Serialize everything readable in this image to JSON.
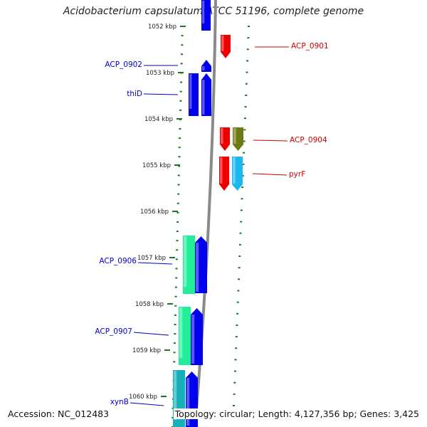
{
  "title": "Acidobacterium capsulatum ATCC 51196, complete genome",
  "footer": {
    "accession": "Accession: NC_012483",
    "summary": "Topology: circular; Length: 4,127,356 bp; Genes: 3,425"
  },
  "colors": {
    "backbone": "#8a8a8a",
    "ticks": "#1a7a1a",
    "tick_text": "#222222",
    "label_left": "#0000cc",
    "label_right": "#cc0000",
    "gene_blue": "#0000ee",
    "gene_red": "#ee0000",
    "gene_olive": "#6b7a12",
    "gene_sky": "#1ab8ee",
    "gene_mint": "#22ee99",
    "gene_teal": "#16b0b8"
  },
  "ruler": {
    "unit": "kbp",
    "ticks": [
      "1052 kbp",
      "1053 kbp",
      "1054 kbp",
      "1055 kbp",
      "1056 kbp",
      "1057 kbp",
      "1058 kbp",
      "1059 kbp",
      "1060 kbp"
    ]
  },
  "genes": [
    {
      "id": "g_top_blue",
      "strand": "+",
      "color": "gene_blue",
      "label": ""
    },
    {
      "id": "ACP_0901",
      "strand": "-",
      "color": "gene_red",
      "label": "ACP_0901"
    },
    {
      "id": "ACP_0902",
      "strand": "+",
      "color": "gene_blue",
      "label": "ACP_0902"
    },
    {
      "id": "thiD_a",
      "strand": "+",
      "color": "gene_blue",
      "label": "thiD"
    },
    {
      "id": "thiD_b",
      "strand": "+",
      "color": "gene_blue",
      "label": ""
    },
    {
      "id": "ACP_0904_red",
      "strand": "-",
      "color": "gene_red",
      "label": ""
    },
    {
      "id": "ACP_0904",
      "strand": "-",
      "color": "gene_olive",
      "label": "ACP_0904"
    },
    {
      "id": "pyrF_red",
      "strand": "-",
      "color": "gene_red",
      "label": ""
    },
    {
      "id": "pyrF",
      "strand": "-",
      "color": "gene_sky",
      "label": "pyrF"
    },
    {
      "id": "ACP_0906",
      "strand": "+",
      "color": "gene_mint",
      "label": "ACP_0906"
    },
    {
      "id": "g_0906_blue",
      "strand": "+",
      "color": "gene_blue",
      "label": ""
    },
    {
      "id": "ACP_0907",
      "strand": "+",
      "color": "gene_mint",
      "label": "ACP_0907"
    },
    {
      "id": "g_0907_blue",
      "strand": "+",
      "color": "gene_blue",
      "label": ""
    },
    {
      "id": "xynB",
      "strand": "+",
      "color": "gene_teal",
      "label": "xynB"
    },
    {
      "id": "g_xynB_blue",
      "strand": "+",
      "color": "gene_blue",
      "label": ""
    }
  ]
}
